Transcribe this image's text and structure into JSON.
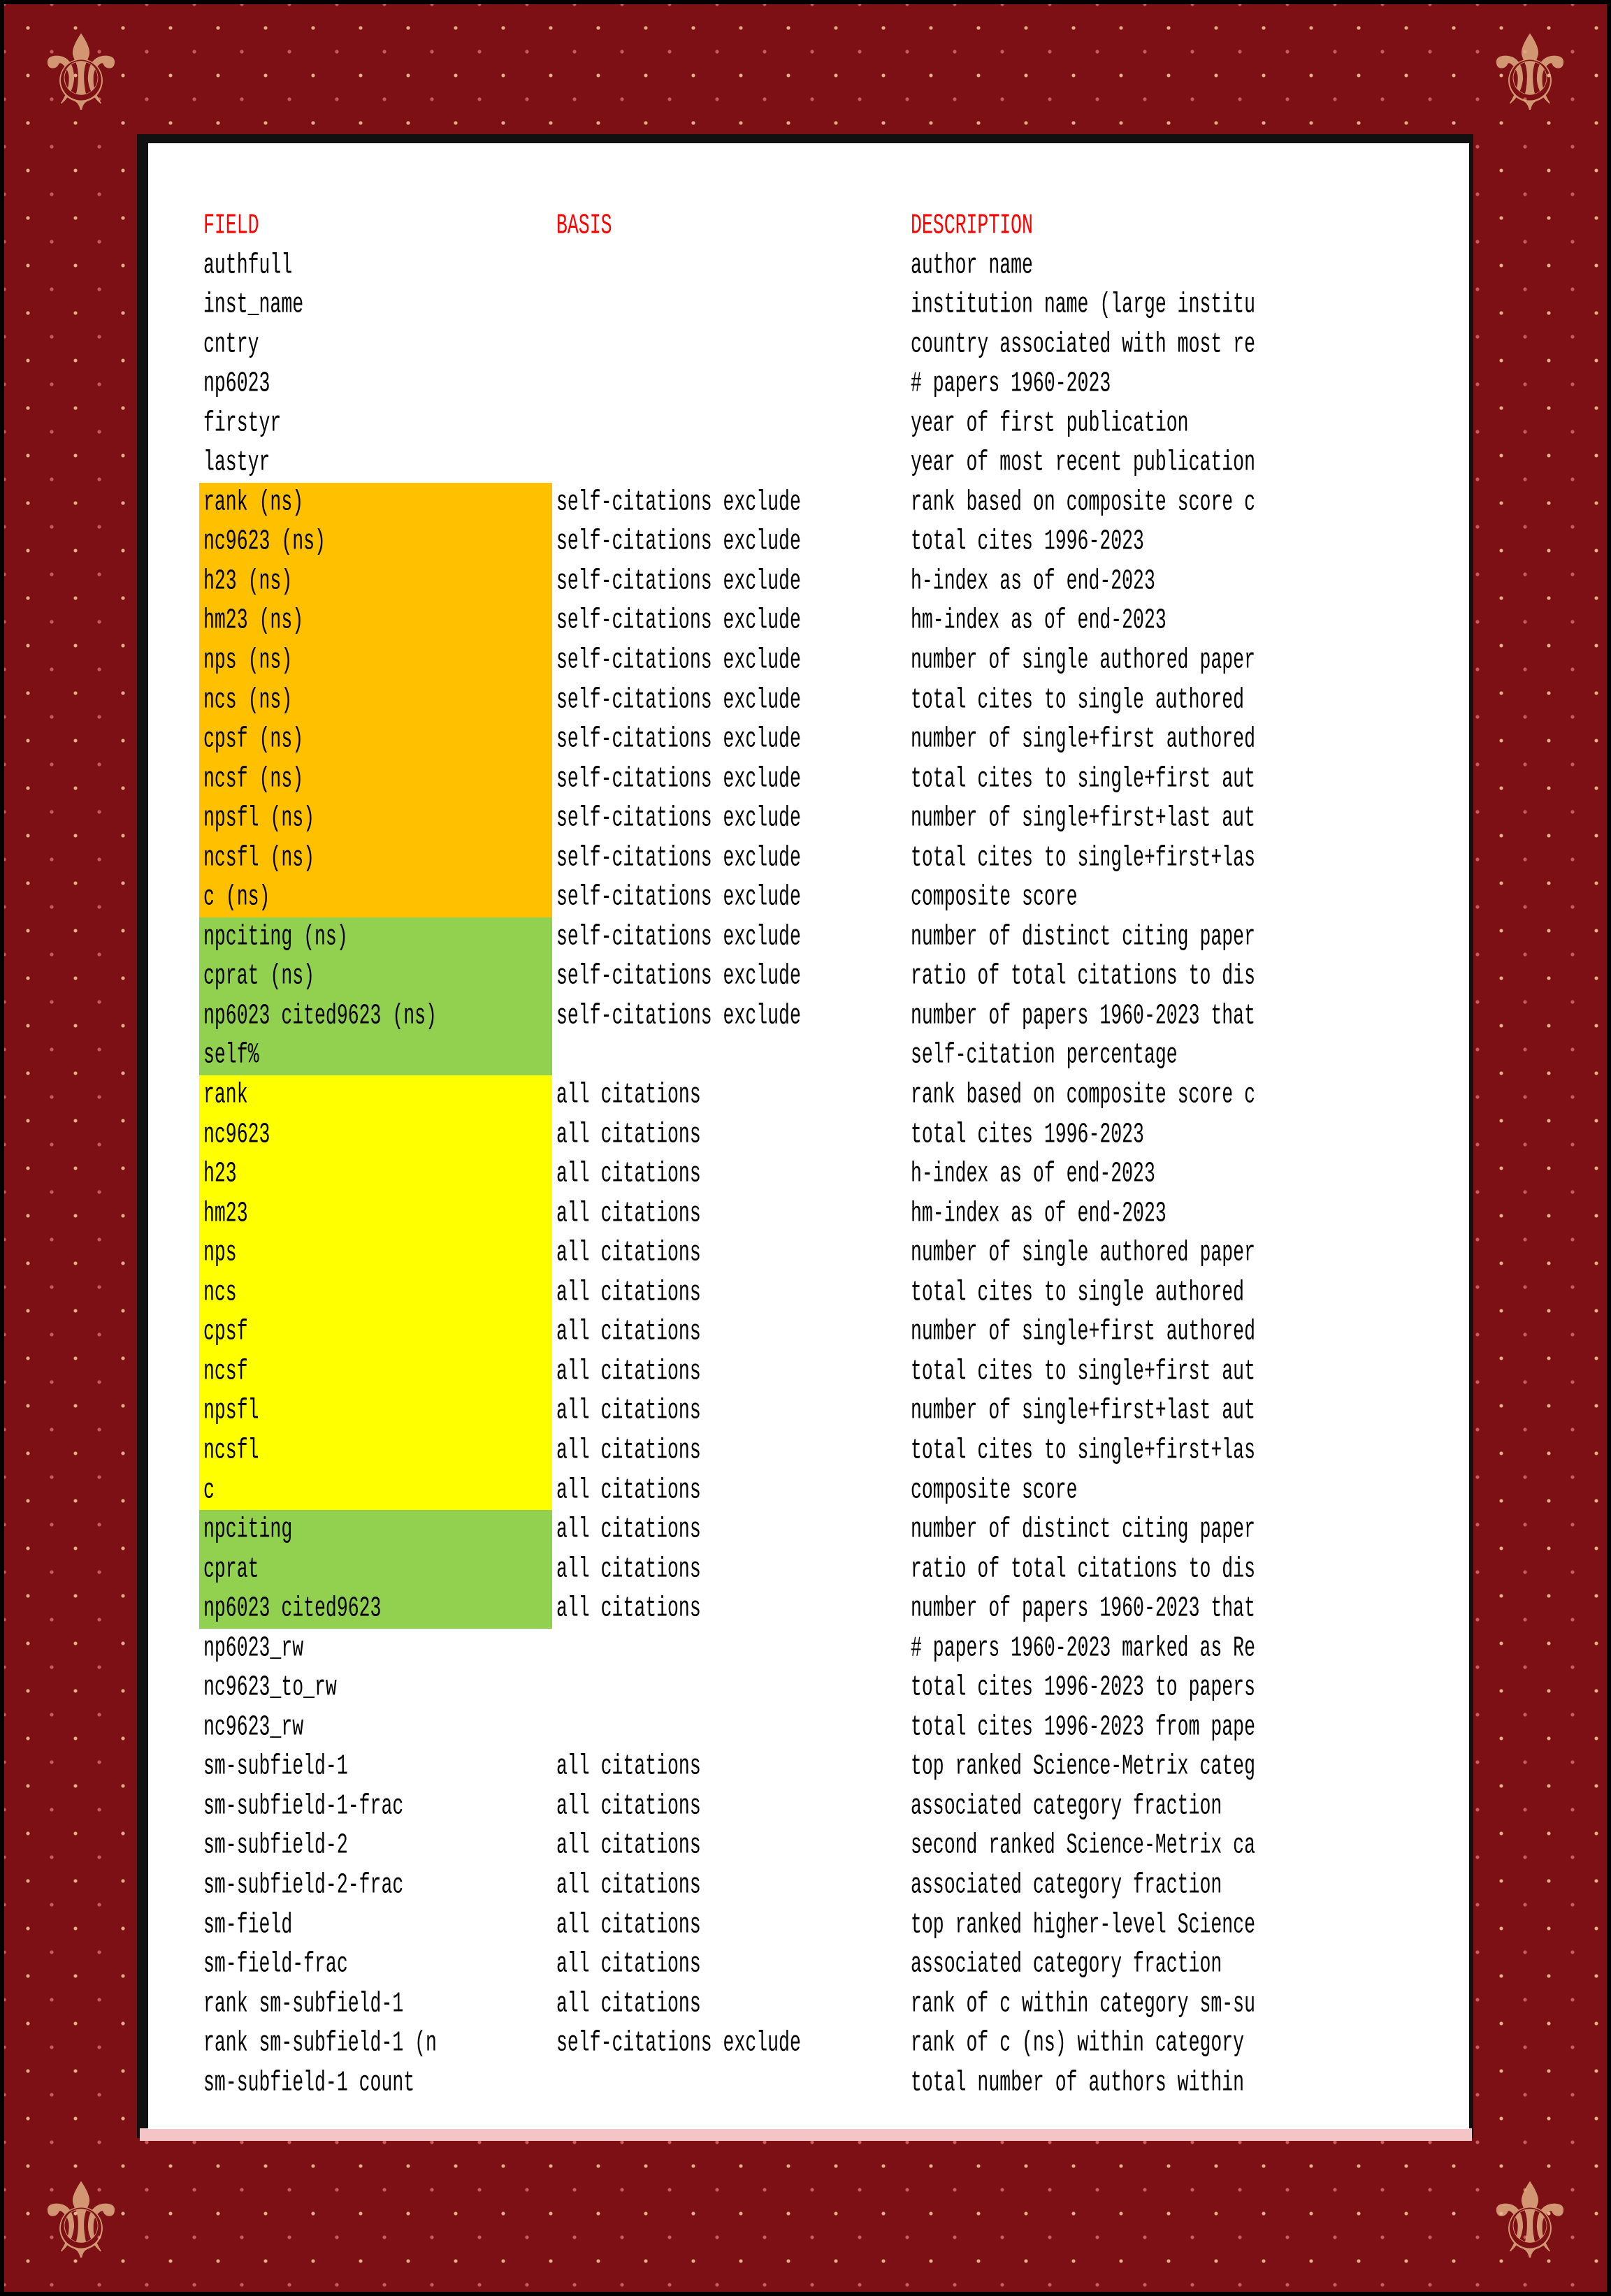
{
  "headers": {
    "field": "FIELD",
    "basis": "BASIS",
    "description": "DESCRIPTION"
  },
  "colors": {
    "header": "#FF0000",
    "orange": "#FFC000",
    "green": "#92D050",
    "yellow": "#FFFF00",
    "border": "#7D1014"
  },
  "rows": [
    {
      "field": "authfull",
      "basis": "",
      "description": "author name",
      "highlight": ""
    },
    {
      "field": "inst_name",
      "basis": "",
      "description": "institution name (large institu",
      "highlight": ""
    },
    {
      "field": "cntry",
      "basis": "",
      "description": "country associated with most re",
      "highlight": ""
    },
    {
      "field": "np6023",
      "basis": "",
      "description": "# papers 1960-2023",
      "highlight": ""
    },
    {
      "field": "firstyr",
      "basis": "",
      "description": "year of first publication",
      "highlight": ""
    },
    {
      "field": "lastyr",
      "basis": "",
      "description": "year of most recent publication",
      "highlight": ""
    },
    {
      "field": "rank (ns)",
      "basis": "self-citations exclude",
      "description": "rank based on composite score c",
      "highlight": "orange"
    },
    {
      "field": "nc9623 (ns)",
      "basis": "self-citations exclude",
      "description": "total cites 1996-2023",
      "highlight": "orange"
    },
    {
      "field": "h23 (ns)",
      "basis": "self-citations exclude",
      "description": "h-index as of end-2023",
      "highlight": "orange"
    },
    {
      "field": "hm23 (ns)",
      "basis": "self-citations exclude",
      "description": "hm-index as of end-2023",
      "highlight": "orange"
    },
    {
      "field": "nps (ns)",
      "basis": "self-citations exclude",
      "description": "number of single authored paper",
      "highlight": "orange"
    },
    {
      "field": "ncs (ns)",
      "basis": "self-citations exclude",
      "description": "total cites to single authored",
      "highlight": "orange"
    },
    {
      "field": "cpsf (ns)",
      "basis": "self-citations exclude",
      "description": "number of single+first authored",
      "highlight": "orange"
    },
    {
      "field": "ncsf (ns)",
      "basis": "self-citations exclude",
      "description": "total cites to single+first aut",
      "highlight": "orange"
    },
    {
      "field": "npsfl (ns)",
      "basis": "self-citations exclude",
      "description": "number of single+first+last aut",
      "highlight": "orange"
    },
    {
      "field": "ncsfl (ns)",
      "basis": "self-citations exclude",
      "description": "total cites to single+first+las",
      "highlight": "orange"
    },
    {
      "field": "c (ns)",
      "basis": "self-citations exclude",
      "description": "composite score",
      "highlight": "orange"
    },
    {
      "field": "npciting (ns)",
      "basis": "self-citations exclude",
      "description": "number of distinct citing paper",
      "highlight": "green"
    },
    {
      "field": "cprat (ns)",
      "basis": "self-citations exclude",
      "description": "ratio of total citations to dis",
      "highlight": "green"
    },
    {
      "field": "np6023 cited9623 (ns)",
      "basis": "self-citations exclude",
      "description": "number of papers 1960-2023 that",
      "highlight": "green"
    },
    {
      "field": "self%",
      "basis": "",
      "description": "self-citation percentage",
      "highlight": "green"
    },
    {
      "field": "rank",
      "basis": "all citations",
      "description": "rank based on composite score c",
      "highlight": "yellow"
    },
    {
      "field": "nc9623",
      "basis": "all citations",
      "description": "total cites 1996-2023",
      "highlight": "yellow"
    },
    {
      "field": "h23",
      "basis": "all citations",
      "description": "h-index as of end-2023",
      "highlight": "yellow"
    },
    {
      "field": "hm23",
      "basis": "all citations",
      "description": "hm-index as of end-2023",
      "highlight": "yellow"
    },
    {
      "field": "nps",
      "basis": "all citations",
      "description": "number of single authored paper",
      "highlight": "yellow"
    },
    {
      "field": "ncs",
      "basis": "all citations",
      "description": "total cites to single authored",
      "highlight": "yellow"
    },
    {
      "field": "cpsf",
      "basis": "all citations",
      "description": "number of single+first authored",
      "highlight": "yellow"
    },
    {
      "field": "ncsf",
      "basis": "all citations",
      "description": "total cites to single+first aut",
      "highlight": "yellow"
    },
    {
      "field": "npsfl",
      "basis": "all citations",
      "description": "number of single+first+last aut",
      "highlight": "yellow"
    },
    {
      "field": "ncsfl",
      "basis": "all citations",
      "description": "total cites to single+first+las",
      "highlight": "yellow"
    },
    {
      "field": "c",
      "basis": "all citations",
      "description": "composite score",
      "highlight": "yellow"
    },
    {
      "field": "npciting",
      "basis": "all citations",
      "description": "number of distinct citing paper",
      "highlight": "green"
    },
    {
      "field": "cprat",
      "basis": "all citations",
      "description": "ratio of total citations to dis",
      "highlight": "green"
    },
    {
      "field": "np6023 cited9623",
      "basis": "all citations",
      "description": "number of papers 1960-2023 that",
      "highlight": "green"
    },
    {
      "field": "np6023_rw",
      "basis": "",
      "description": "# papers 1960-2023 marked as Re",
      "highlight": ""
    },
    {
      "field": "nc9623_to_rw",
      "basis": "",
      "description": "total cites 1996-2023 to papers",
      "highlight": ""
    },
    {
      "field": "nc9623_rw",
      "basis": "",
      "description": "total cites 1996-2023 from pape",
      "highlight": ""
    },
    {
      "field": "sm-subfield-1",
      "basis": "all citations",
      "description": "top ranked Science-Metrix categ",
      "highlight": ""
    },
    {
      "field": "sm-subfield-1-frac",
      "basis": "all citations",
      "description": "associated category fraction",
      "highlight": ""
    },
    {
      "field": "sm-subfield-2",
      "basis": "all citations",
      "description": "second ranked Science-Metrix ca",
      "highlight": ""
    },
    {
      "field": "sm-subfield-2-frac",
      "basis": "all citations",
      "description": "associated category fraction",
      "highlight": ""
    },
    {
      "field": "sm-field",
      "basis": "all citations",
      "description": "top ranked higher-level Science",
      "highlight": ""
    },
    {
      "field": "sm-field-frac",
      "basis": "all citations",
      "description": "associated category fraction",
      "highlight": ""
    },
    {
      "field": "rank sm-subfield-1",
      "basis": "all citations",
      "description": "rank of c within category sm-su",
      "highlight": ""
    },
    {
      "field": "rank sm-subfield-1 (n",
      "basis": "self-citations exclude",
      "description": "rank of c (ns) within category",
      "highlight": ""
    },
    {
      "field": "sm-subfield-1 count",
      "basis": "",
      "description": "total number of authors within",
      "highlight": ""
    }
  ]
}
